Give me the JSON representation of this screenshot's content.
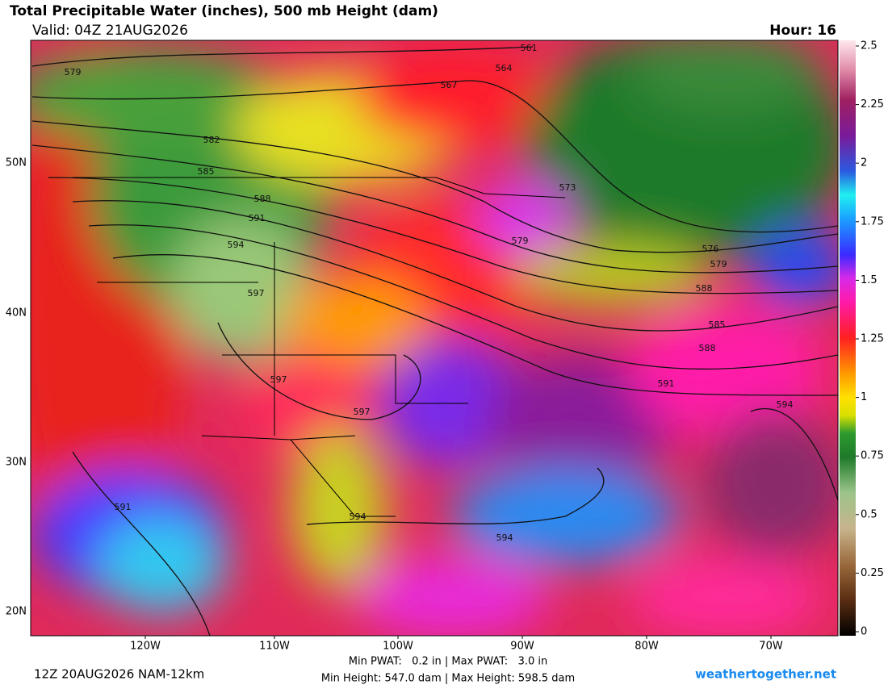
{
  "header": {
    "title": "Total Precipitable Water (inches), 500 mb Height (dam)",
    "valid": "Valid: 04Z 21AUG2026",
    "hour": "Hour: 16"
  },
  "map": {
    "longitude_labels": [
      "120W",
      "110W",
      "100W",
      "90W",
      "80W",
      "70W"
    ],
    "latitude_labels": [
      "50N",
      "40N",
      "30N",
      "20N"
    ],
    "contour_labels": [
      "561",
      "564",
      "567",
      "573",
      "579",
      "576",
      "579",
      "579",
      "582",
      "585",
      "588",
      "591",
      "594",
      "597",
      "597",
      "597",
      "594",
      "594",
      "591",
      "591",
      "594",
      "588",
      "585",
      "588"
    ]
  },
  "colorbar": {
    "ticks": [
      0,
      0.25,
      0.5,
      0.75,
      1,
      1.25,
      1.5,
      1.75,
      2,
      2.25,
      2.5
    ]
  },
  "footer": {
    "run": "12Z 20AUG2026 NAM-12km",
    "pwat": "Min PWAT:   0.2 in | Max PWAT:   3.0 in",
    "height": "Min Height: 547.0 dam | Max Height: 598.5 dam",
    "site": "weathertogether.net"
  }
}
